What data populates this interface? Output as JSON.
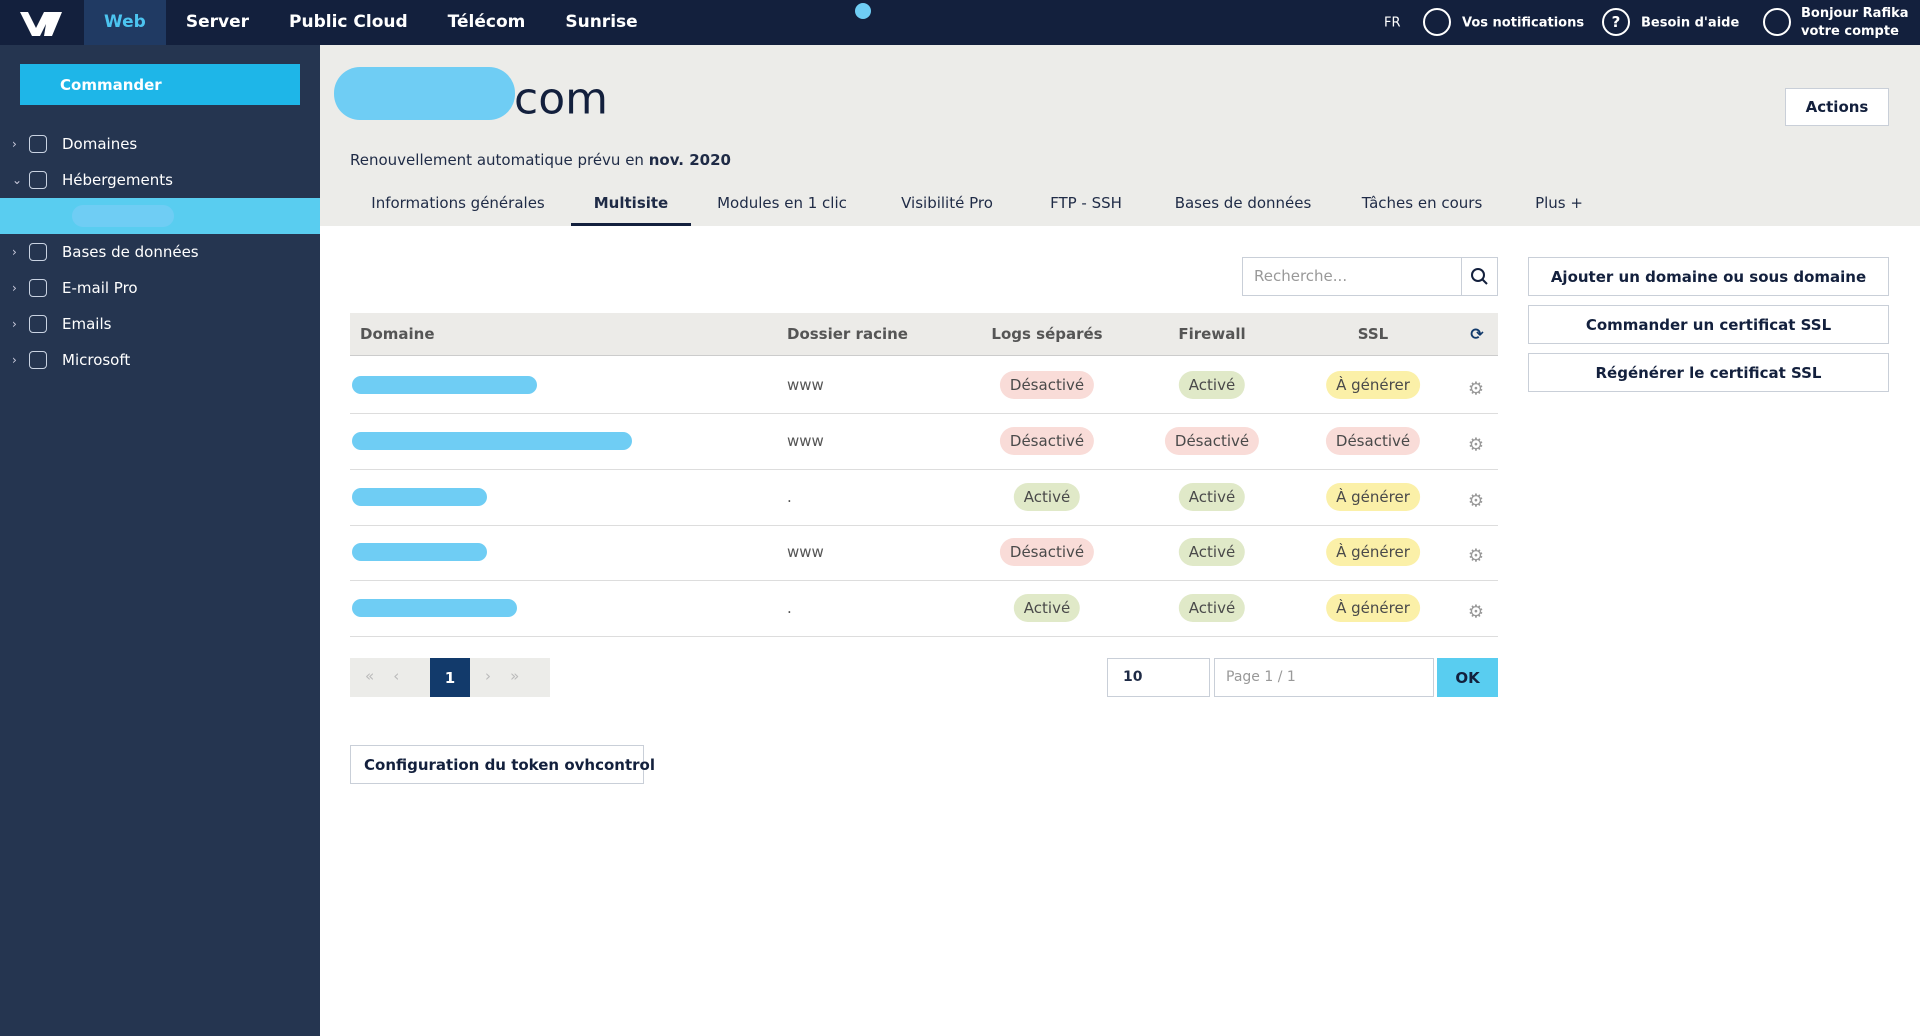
{
  "topnav": {
    "items": [
      "Web",
      "Server",
      "Public Cloud",
      "Télécom",
      "Sunrise"
    ],
    "active_index": 0,
    "lang": "FR",
    "notifications": "Vos notifications",
    "help": "Besoin d'aide",
    "account_greeting": "Bonjour Rafika",
    "account_link": "votre compte"
  },
  "sidebar": {
    "order": "Commander",
    "items": [
      "Domaines",
      "Hébergements",
      "Bases de données",
      "E-mail Pro",
      "Emails",
      "Microsoft"
    ]
  },
  "header": {
    "title": "com",
    "renewal": "Renouvellement automatique prévu en",
    "renewal_date": "nov. 2020",
    "actions": "Actions"
  },
  "tabs": {
    "items": [
      "Informations générales",
      "Multisite",
      "Modules en 1 clic",
      "Visibilité Pro",
      "FTP - SSH",
      "Bases de données",
      "Tâches en cours",
      "Plus +"
    ],
    "active_index": 1
  },
  "search_placeholder": "Recherche...",
  "table": {
    "columns": [
      "Domaine",
      "Dossier racine",
      "Logs séparés",
      "Firewall",
      "SSL"
    ],
    "rows": [
      {
        "folder": "www",
        "badges": [
          {
            "label": "Désactivé",
            "color": "#f9dcd8"
          },
          {
            "label": "Activé",
            "color": "#e0e9c8"
          },
          {
            "label": "À générer",
            "color": "#fbf0a8"
          }
        ]
      },
      {
        "folder": "www",
        "badges": [
          {
            "label": "Désactivé",
            "color": "#f9dcd8"
          },
          {
            "label": "Désactivé",
            "color": "#f9dcd8"
          },
          {
            "label": "Désactivé",
            "color": "#f9dcd8"
          }
        ]
      },
      {
        "folder": ".",
        "badges": [
          {
            "label": "Activé",
            "color": "#e0e9c8"
          },
          {
            "label": "Activé",
            "color": "#e0e9c8"
          },
          {
            "label": "À générer",
            "color": "#fbf0a8"
          }
        ]
      },
      {
        "folder": "www",
        "badges": [
          {
            "label": "Désactivé",
            "color": "#f9dcd8"
          },
          {
            "label": "Activé",
            "color": "#e0e9c8"
          },
          {
            "label": "À générer",
            "color": "#fbf0a8"
          }
        ]
      },
      {
        "folder": ".",
        "badges": [
          {
            "label": "Activé",
            "color": "#e0e9c8"
          },
          {
            "label": "Activé",
            "color": "#e0e9c8"
          },
          {
            "label": "À générer",
            "color": "#fbf0a8"
          }
        ]
      }
    ]
  },
  "pagination": {
    "current": 1,
    "page_size": 10,
    "page_info": "Page 1 / 1",
    "ok": "OK"
  },
  "buttons": [
    "Ajouter un domaine ou sous domaine",
    "Commander un certificat SSL",
    "Régénérer le certificat SSL"
  ],
  "token_config": "Configuration du token ovhcontrol"
}
